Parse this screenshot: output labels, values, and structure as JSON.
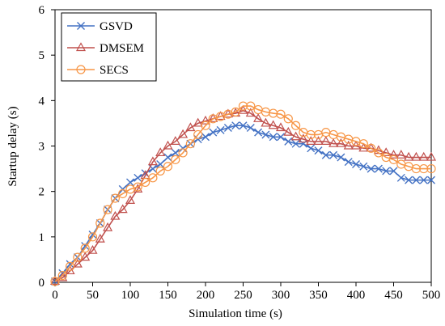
{
  "chart_data": {
    "type": "line",
    "xlabel": "Simulation time (s)",
    "ylabel": "Startup delay (s)",
    "xlim": [
      0,
      500
    ],
    "ylim": [
      0,
      6
    ],
    "x_ticks": [
      0,
      50,
      100,
      150,
      200,
      250,
      300,
      350,
      400,
      450,
      500
    ],
    "y_ticks": [
      0,
      1,
      2,
      3,
      4,
      5,
      6
    ],
    "grid": false,
    "legend_position": "top-left",
    "series": [
      {
        "name": "GSVD",
        "color": "#4472c4",
        "marker": "x",
        "x": [
          0,
          10,
          20,
          30,
          40,
          50,
          60,
          70,
          80,
          90,
          100,
          110,
          120,
          130,
          140,
          150,
          160,
          170,
          180,
          190,
          200,
          210,
          220,
          230,
          240,
          250,
          260,
          270,
          280,
          290,
          300,
          310,
          320,
          330,
          340,
          350,
          360,
          370,
          380,
          390,
          400,
          410,
          420,
          430,
          440,
          450,
          460,
          470,
          480,
          490,
          500
        ],
        "y": [
          0.02,
          0.2,
          0.4,
          0.55,
          0.8,
          1.05,
          1.3,
          1.6,
          1.85,
          2.05,
          2.2,
          2.3,
          2.4,
          2.5,
          2.6,
          2.75,
          2.85,
          2.95,
          3.05,
          3.15,
          3.2,
          3.3,
          3.35,
          3.4,
          3.45,
          3.45,
          3.4,
          3.3,
          3.25,
          3.2,
          3.2,
          3.1,
          3.05,
          3.05,
          2.95,
          2.9,
          2.8,
          2.8,
          2.75,
          2.65,
          2.6,
          2.55,
          2.5,
          2.5,
          2.45,
          2.45,
          2.3,
          2.25,
          2.25,
          2.25,
          2.25
        ]
      },
      {
        "name": "DMSEM",
        "color": "#c0504d",
        "marker": "triangle",
        "x": [
          0,
          10,
          20,
          30,
          40,
          50,
          60,
          70,
          80,
          90,
          100,
          110,
          120,
          130,
          140,
          150,
          160,
          170,
          180,
          190,
          200,
          210,
          220,
          230,
          240,
          250,
          260,
          270,
          280,
          290,
          300,
          310,
          320,
          330,
          340,
          350,
          360,
          370,
          380,
          390,
          400,
          410,
          420,
          430,
          440,
          450,
          460,
          470,
          480,
          490,
          500
        ],
        "y": [
          0.02,
          0.1,
          0.25,
          0.4,
          0.55,
          0.7,
          0.95,
          1.2,
          1.45,
          1.6,
          1.8,
          2.05,
          2.35,
          2.65,
          2.85,
          3.0,
          3.1,
          3.25,
          3.4,
          3.5,
          3.55,
          3.6,
          3.65,
          3.7,
          3.72,
          3.78,
          3.72,
          3.6,
          3.5,
          3.45,
          3.4,
          3.3,
          3.2,
          3.15,
          3.1,
          3.1,
          3.1,
          3.05,
          3.05,
          3.0,
          3.0,
          2.95,
          2.95,
          2.9,
          2.85,
          2.8,
          2.8,
          2.75,
          2.75,
          2.75,
          2.75
        ]
      },
      {
        "name": "SECS",
        "color": "#f79646",
        "marker": "circle",
        "x": [
          0,
          10,
          20,
          30,
          40,
          50,
          60,
          70,
          80,
          90,
          100,
          110,
          120,
          130,
          140,
          150,
          160,
          170,
          180,
          190,
          200,
          210,
          220,
          230,
          240,
          250,
          260,
          270,
          280,
          290,
          300,
          310,
          320,
          330,
          340,
          350,
          360,
          370,
          380,
          390,
          400,
          410,
          420,
          430,
          440,
          450,
          460,
          470,
          480,
          490,
          500
        ],
        "y": [
          0.02,
          0.15,
          0.35,
          0.55,
          0.75,
          1.0,
          1.3,
          1.6,
          1.85,
          1.95,
          2.05,
          2.1,
          2.2,
          2.3,
          2.45,
          2.55,
          2.7,
          2.85,
          3.05,
          3.25,
          3.45,
          3.6,
          3.65,
          3.7,
          3.75,
          3.88,
          3.88,
          3.8,
          3.75,
          3.72,
          3.7,
          3.6,
          3.45,
          3.3,
          3.25,
          3.25,
          3.3,
          3.25,
          3.2,
          3.15,
          3.1,
          3.05,
          2.95,
          2.85,
          2.75,
          2.7,
          2.6,
          2.55,
          2.5,
          2.5,
          2.5
        ]
      }
    ]
  }
}
